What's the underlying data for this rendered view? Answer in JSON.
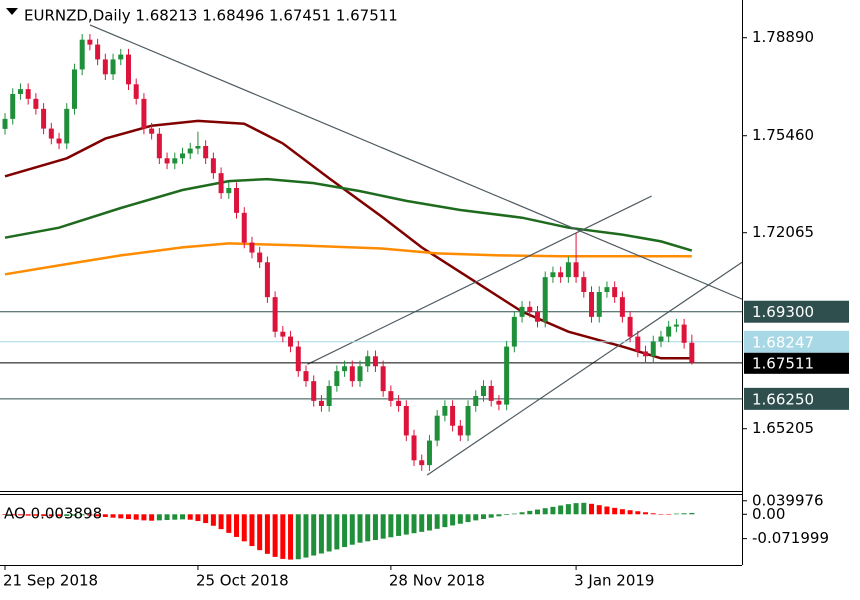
{
  "chart_data": [
    {
      "type": "candlestick",
      "title": "EURNZD,Daily 1.68213 1.68496 1.67451 1.67511",
      "open": [
        1.757,
        1.7605,
        1.7692,
        1.7709,
        1.7675,
        1.764,
        1.7571,
        1.7536,
        1.7519,
        1.764,
        1.7778,
        1.7882,
        1.7865,
        1.7813,
        1.7761,
        1.7813,
        1.783,
        1.7726,
        1.7675,
        1.7571,
        1.7553,
        1.7467,
        1.7449,
        1.7467,
        1.7484,
        1.7501,
        1.751,
        1.7467,
        1.7415,
        1.7345,
        1.7363,
        1.7276,
        1.7172,
        1.7137,
        1.7103,
        1.6981,
        1.686,
        1.6843,
        1.6808,
        1.6722,
        1.6687,
        1.6618,
        1.66,
        1.667,
        1.6722,
        1.6739,
        1.6687,
        1.6739,
        1.6774,
        1.6739,
        1.6652,
        1.6618,
        1.66,
        1.6497,
        1.641,
        1.6393,
        1.6479,
        1.6566,
        1.66,
        1.6531,
        1.6497,
        1.66,
        1.6635,
        1.667,
        1.6618,
        1.6605,
        1.6808,
        1.6912,
        1.6947,
        1.693,
        1.6895,
        1.7051,
        1.7068,
        1.7051,
        1.7103,
        1.7051,
        1.6999,
        1.6912,
        1.6999,
        1.7016,
        1.6981,
        1.6912,
        1.6843,
        1.6791,
        1.6774,
        1.6826,
        1.6843,
        1.6878,
        1.6885,
        1.68213
      ],
      "high": [
        1.7625,
        1.7712,
        1.7729,
        1.7729,
        1.7695,
        1.766,
        1.7591,
        1.7556,
        1.766,
        1.7798,
        1.7902,
        1.7902,
        1.7885,
        1.7833,
        1.7833,
        1.785,
        1.785,
        1.7746,
        1.7695,
        1.7591,
        1.7573,
        1.7487,
        1.7487,
        1.7504,
        1.7521,
        1.756,
        1.753,
        1.7487,
        1.7435,
        1.7383,
        1.7383,
        1.7296,
        1.7192,
        1.7157,
        1.7123,
        1.7001,
        1.688,
        1.6863,
        1.6828,
        1.6742,
        1.6707,
        1.6638,
        1.669,
        1.6742,
        1.6759,
        1.6759,
        1.6759,
        1.6794,
        1.6794,
        1.6759,
        1.6672,
        1.6638,
        1.662,
        1.6517,
        1.643,
        1.6499,
        1.6586,
        1.662,
        1.662,
        1.6551,
        1.662,
        1.6655,
        1.669,
        1.669,
        1.6638,
        1.6828,
        1.6932,
        1.6967,
        1.6967,
        1.695,
        1.7071,
        1.7088,
        1.7088,
        1.7123,
        1.7207,
        1.7071,
        1.7019,
        1.7019,
        1.7036,
        1.7036,
        1.7001,
        1.6932,
        1.6863,
        1.6811,
        1.6846,
        1.6863,
        1.6898,
        1.6905,
        1.6905,
        1.68496
      ],
      "low": [
        1.755,
        1.7585,
        1.7672,
        1.7655,
        1.762,
        1.7551,
        1.7516,
        1.7499,
        1.7499,
        1.762,
        1.7758,
        1.7845,
        1.7793,
        1.7741,
        1.7741,
        1.7793,
        1.7706,
        1.7655,
        1.7551,
        1.7533,
        1.7447,
        1.7429,
        1.7429,
        1.7447,
        1.7464,
        1.7481,
        1.7447,
        1.7395,
        1.7325,
        1.7325,
        1.7256,
        1.7152,
        1.7117,
        1.7083,
        1.6961,
        1.684,
        1.6823,
        1.6788,
        1.6702,
        1.6667,
        1.6598,
        1.658,
        1.658,
        1.665,
        1.6702,
        1.6667,
        1.6667,
        1.6719,
        1.6719,
        1.6632,
        1.6598,
        1.658,
        1.6477,
        1.639,
        1.6373,
        1.6373,
        1.6459,
        1.6546,
        1.6511,
        1.6477,
        1.6477,
        1.658,
        1.6615,
        1.6598,
        1.6585,
        1.6585,
        1.6788,
        1.6892,
        1.691,
        1.6875,
        1.6875,
        1.7031,
        1.7031,
        1.7031,
        1.7031,
        1.6979,
        1.6892,
        1.6892,
        1.6979,
        1.6961,
        1.6892,
        1.6823,
        1.6771,
        1.6754,
        1.6754,
        1.6806,
        1.6823,
        1.6858,
        1.6801,
        1.67451
      ],
      "close": [
        1.7605,
        1.7692,
        1.7709,
        1.7675,
        1.764,
        1.7571,
        1.7536,
        1.7519,
        1.764,
        1.7778,
        1.7882,
        1.7865,
        1.7813,
        1.7761,
        1.7813,
        1.783,
        1.7726,
        1.7675,
        1.7571,
        1.7553,
        1.7467,
        1.7449,
        1.7467,
        1.7484,
        1.7501,
        1.751,
        1.7467,
        1.7415,
        1.7345,
        1.7363,
        1.7276,
        1.7172,
        1.7137,
        1.7103,
        1.6981,
        1.686,
        1.6843,
        1.6808,
        1.6722,
        1.6687,
        1.6618,
        1.66,
        1.667,
        1.6722,
        1.6739,
        1.6687,
        1.6739,
        1.6774,
        1.6739,
        1.6652,
        1.6618,
        1.66,
        1.6497,
        1.641,
        1.6393,
        1.6479,
        1.6566,
        1.66,
        1.6531,
        1.6497,
        1.66,
        1.6635,
        1.667,
        1.6618,
        1.6605,
        1.6808,
        1.6912,
        1.6947,
        1.693,
        1.6895,
        1.7051,
        1.7068,
        1.7051,
        1.7103,
        1.7051,
        1.6999,
        1.6912,
        1.6999,
        1.7016,
        1.6981,
        1.6912,
        1.6843,
        1.6791,
        1.6774,
        1.6826,
        1.6843,
        1.6878,
        1.6885,
        1.68213,
        1.67511
      ],
      "up_color": "#1f8f3a",
      "down_color": "#dc143c",
      "xlim": [
        -0.65,
        95.5
      ],
      "ylim": [
        1.6306,
        1.8021
      ],
      "yticks": [
        {
          "value": 1.7889,
          "label": "1.78890"
        },
        {
          "value": 1.7546,
          "label": "1.75460"
        },
        {
          "value": 1.72065,
          "label": "1.72065"
        },
        {
          "value": 1.65205,
          "label": "1.65205"
        }
      ],
      "xticks": [
        {
          "value": 0,
          "label": "21 Sep 2018"
        },
        {
          "value": 25,
          "label": "25 Oct 2018"
        },
        {
          "value": 50,
          "label": "28 Nov 2018"
        },
        {
          "value": 74,
          "label": "3 Jan 2019"
        }
      ],
      "moving_averages": [
        {
          "color": "#800000",
          "x": [
            0,
            8,
            13,
            19,
            25,
            31,
            36,
            42,
            49,
            54,
            60,
            67,
            73,
            80,
            85,
            89
          ],
          "values": [
            1.7404,
            1.7467,
            1.7536,
            1.7581,
            1.7598,
            1.7588,
            1.7519,
            1.7397,
            1.7259,
            1.7155,
            1.7051,
            1.693,
            1.686,
            1.6808,
            1.6767,
            1.6767
          ]
        },
        {
          "color": "#1e6b1e",
          "x": [
            0,
            7,
            15,
            23,
            29,
            34,
            40,
            46,
            52,
            59,
            67,
            73,
            80,
            85,
            89
          ],
          "values": [
            1.7189,
            1.7224,
            1.7293,
            1.7356,
            1.7387,
            1.7394,
            1.738,
            1.7352,
            1.7318,
            1.7286,
            1.7259,
            1.7224,
            1.72,
            1.7176,
            1.7144
          ]
        },
        {
          "color": "#ff8c00",
          "x": [
            0,
            7,
            15,
            23,
            29,
            38,
            49,
            56,
            64,
            72,
            80,
            89
          ],
          "values": [
            1.7061,
            1.7092,
            1.7127,
            1.7155,
            1.7169,
            1.7162,
            1.7151,
            1.7134,
            1.7127,
            1.7124,
            1.7124,
            1.7124
          ]
        }
      ],
      "trendlines": [
        {
          "color": "#4f5b62",
          "x": [
            11,
            95.5
          ],
          "values": [
            1.7934,
            1.6974
          ]
        },
        {
          "color": "#4f5b62",
          "x": [
            39.2,
            83.8
          ],
          "values": [
            1.6746,
            1.7335
          ]
        },
        {
          "color": "#4f5b62",
          "x": [
            54.7,
            95.5
          ],
          "values": [
            1.6358,
            1.7103
          ]
        }
      ],
      "levels": [
        {
          "value": 1.693,
          "label": "1.69300",
          "color": "#2f4f4f"
        },
        {
          "value": 1.67511,
          "label": "1.67511",
          "color": "#000000"
        },
        {
          "value": 1.68247,
          "label": "1.68247",
          "color": "#a8d8e6"
        },
        {
          "value": 1.6625,
          "label": "1.66250",
          "color": "#2f4f4f"
        }
      ]
    },
    {
      "type": "bar",
      "title": "AO 0.003898",
      "values": [
        -0.002,
        -0.003,
        -0.003,
        -0.004,
        -0.004,
        -0.005,
        -0.006,
        -0.006,
        -0.005,
        -0.004,
        -0.003,
        -0.004,
        -0.006,
        -0.008,
        -0.01,
        -0.012,
        -0.014,
        -0.016,
        -0.018,
        -0.019,
        -0.018,
        -0.017,
        -0.016,
        -0.015,
        -0.016,
        -0.02,
        -0.026,
        -0.034,
        -0.044,
        -0.055,
        -0.067,
        -0.08,
        -0.094,
        -0.106,
        -0.117,
        -0.126,
        -0.132,
        -0.134,
        -0.133,
        -0.128,
        -0.122,
        -0.116,
        -0.11,
        -0.104,
        -0.097,
        -0.09,
        -0.084,
        -0.08,
        -0.076,
        -0.072,
        -0.068,
        -0.064,
        -0.06,
        -0.056,
        -0.052,
        -0.048,
        -0.043,
        -0.038,
        -0.033,
        -0.028,
        -0.023,
        -0.018,
        -0.014,
        -0.01,
        -0.006,
        -0.002,
        0.002,
        0.006,
        0.01,
        0.014,
        0.018,
        0.022,
        0.026,
        0.03,
        0.033,
        0.034,
        0.031,
        0.027,
        0.023,
        0.019,
        0.015,
        0.012,
        0.009,
        0.006,
        0.003,
        0.001,
        0.0,
        0.002,
        0.003,
        0.003898
      ],
      "up_color": "#1f8f3a",
      "down_color": "#ff0000",
      "ylim": [
        -0.15,
        0.06
      ],
      "yticks": [
        0.039976,
        {
          "value": 0,
          "label": "0.00"
        },
        -0.071999
      ]
    }
  ]
}
